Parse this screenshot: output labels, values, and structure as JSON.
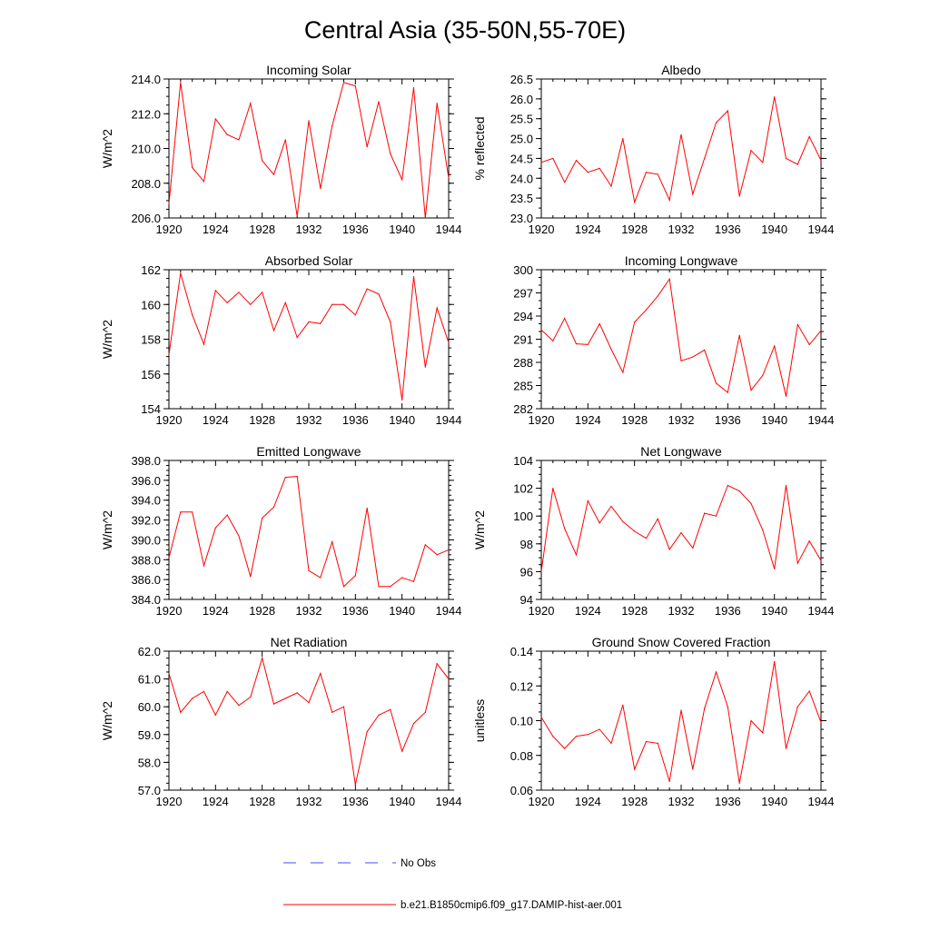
{
  "figure": {
    "title": "Central Asia (35-50N,55-70E)",
    "line_color": "#ff0000",
    "obs_color": "#4a4aff",
    "legend": {
      "obs_label": "No Obs",
      "model_label": "b.e21.B1850cmip6.f09_g17.DAMIP-hist-aer.001"
    }
  },
  "chart_data": [
    {
      "type": "line",
      "title": "Incoming Solar",
      "xlabel": "",
      "ylabel": "W/m^2",
      "xlim": [
        1920,
        1944
      ],
      "ylim": [
        206,
        214
      ],
      "xticks": [
        1920,
        1924,
        1928,
        1932,
        1936,
        1940,
        1944
      ],
      "yticks": [
        206,
        208,
        210,
        212,
        214
      ],
      "tick_decimals": 1,
      "minor_step": 0.5,
      "series": [
        {
          "x_start": 1920,
          "x_step": 1,
          "values": [
            206.8,
            213.8,
            208.9,
            208.1,
            211.7,
            210.8,
            210.5,
            212.6,
            209.3,
            208.5,
            210.5,
            206.1,
            211.6,
            207.7,
            211.3,
            213.8,
            213.6,
            210.1,
            212.7,
            209.7,
            208.2,
            213.5,
            206.0,
            212.6,
            208.3
          ]
        }
      ]
    },
    {
      "type": "line",
      "title": "Albedo",
      "xlabel": "",
      "ylabel": "% reflected",
      "xlim": [
        1920,
        1944
      ],
      "ylim": [
        23,
        26.5
      ],
      "xticks": [
        1920,
        1924,
        1928,
        1932,
        1936,
        1940,
        1944
      ],
      "yticks": [
        23,
        23.5,
        24,
        24.5,
        25,
        25.5,
        26,
        26.5
      ],
      "tick_decimals": 1,
      "minor_step": 0.25,
      "series": [
        {
          "x_start": 1920,
          "x_step": 1,
          "values": [
            24.4,
            24.5,
            23.9,
            24.45,
            24.15,
            24.25,
            23.8,
            25.0,
            23.4,
            24.15,
            24.1,
            23.45,
            25.1,
            23.6,
            24.5,
            25.4,
            25.7,
            23.55,
            24.7,
            24.4,
            26.05,
            24.5,
            24.35,
            25.05,
            24.45
          ]
        }
      ]
    },
    {
      "type": "line",
      "title": "Absorbed Solar",
      "xlabel": "",
      "ylabel": "W/m^2",
      "xlim": [
        1920,
        1944
      ],
      "ylim": [
        154,
        162
      ],
      "xticks": [
        1920,
        1924,
        1928,
        1932,
        1936,
        1940,
        1944
      ],
      "yticks": [
        154,
        156,
        158,
        160,
        162
      ],
      "tick_decimals": 0,
      "minor_step": 0.5,
      "series": [
        {
          "x_start": 1920,
          "x_step": 1,
          "values": [
            157.1,
            161.8,
            159.4,
            157.7,
            160.8,
            160.1,
            160.7,
            160.0,
            160.7,
            158.5,
            160.1,
            158.1,
            159.0,
            158.9,
            160.0,
            160.0,
            159.4,
            160.9,
            160.6,
            159.0,
            154.5,
            161.6,
            156.4,
            159.8,
            157.8
          ]
        }
      ]
    },
    {
      "type": "line",
      "title": "Incoming Longwave",
      "xlabel": "",
      "ylabel": "",
      "xlim": [
        1920,
        1944
      ],
      "ylim": [
        282,
        300
      ],
      "xticks": [
        1920,
        1924,
        1928,
        1932,
        1936,
        1940,
        1944
      ],
      "yticks": [
        282,
        285,
        288,
        291,
        294,
        297,
        300
      ],
      "tick_decimals": 0,
      "minor_step": 1,
      "series": [
        {
          "x_start": 1920,
          "x_step": 1,
          "values": [
            292.2,
            290.8,
            293.7,
            290.4,
            290.3,
            293.0,
            289.7,
            286.7,
            293.2,
            294.8,
            296.6,
            298.8,
            288.2,
            288.7,
            289.6,
            285.3,
            284.1,
            291.5,
            284.4,
            286.3,
            290.1,
            283.6,
            292.9,
            290.3,
            292.1
          ]
        }
      ]
    },
    {
      "type": "line",
      "title": "Emitted Longwave",
      "xlabel": "",
      "ylabel": "W/m^2",
      "xlim": [
        1920,
        1944
      ],
      "ylim": [
        384,
        398
      ],
      "xticks": [
        1920,
        1924,
        1928,
        1932,
        1936,
        1940,
        1944
      ],
      "yticks": [
        384,
        386,
        388,
        390,
        392,
        394,
        396,
        398
      ],
      "tick_decimals": 1,
      "minor_step": 0.5,
      "series": [
        {
          "x_start": 1920,
          "x_step": 1,
          "values": [
            388.2,
            392.8,
            392.8,
            387.4,
            391.2,
            392.5,
            390.4,
            386.3,
            392.2,
            393.3,
            396.3,
            396.4,
            386.9,
            386.2,
            389.8,
            385.3,
            386.4,
            393.2,
            385.3,
            385.3,
            386.2,
            385.8,
            389.5,
            388.5,
            389.0
          ]
        }
      ]
    },
    {
      "type": "line",
      "title": "Net Longwave",
      "xlabel": "",
      "ylabel": "W/m^2",
      "xlim": [
        1920,
        1944
      ],
      "ylim": [
        94,
        104
      ],
      "xticks": [
        1920,
        1924,
        1928,
        1932,
        1936,
        1940,
        1944
      ],
      "yticks": [
        94,
        96,
        98,
        100,
        102,
        104
      ],
      "tick_decimals": 0,
      "minor_step": 0.5,
      "series": [
        {
          "x_start": 1920,
          "x_step": 1,
          "values": [
            96.0,
            102.0,
            99.1,
            97.2,
            101.1,
            99.5,
            100.7,
            99.6,
            98.9,
            98.4,
            99.8,
            97.6,
            98.8,
            97.7,
            100.2,
            100.0,
            102.2,
            101.8,
            100.9,
            99.0,
            96.2,
            102.2,
            96.6,
            98.2,
            96.8
          ]
        }
      ]
    },
    {
      "type": "line",
      "title": "Net Radiation",
      "xlabel": "",
      "ylabel": "W/m^2",
      "xlim": [
        1920,
        1944
      ],
      "ylim": [
        57,
        62
      ],
      "xticks": [
        1920,
        1924,
        1928,
        1932,
        1936,
        1940,
        1944
      ],
      "yticks": [
        57,
        58,
        59,
        60,
        61,
        62
      ],
      "tick_decimals": 1,
      "minor_step": 0.25,
      "series": [
        {
          "x_start": 1920,
          "x_step": 1,
          "values": [
            61.2,
            59.8,
            60.3,
            60.55,
            59.7,
            60.55,
            60.05,
            60.35,
            61.75,
            60.1,
            60.3,
            60.5,
            60.15,
            61.2,
            59.8,
            60.0,
            57.2,
            59.1,
            59.7,
            59.9,
            58.4,
            59.4,
            59.8,
            61.55,
            61.0
          ]
        }
      ]
    },
    {
      "type": "line",
      "title": "Ground Snow Covered Fraction",
      "xlabel": "",
      "ylabel": "unitless",
      "xlim": [
        1920,
        1944
      ],
      "ylim": [
        0.06,
        0.14
      ],
      "xticks": [
        1920,
        1924,
        1928,
        1932,
        1936,
        1940,
        1944
      ],
      "yticks": [
        0.06,
        0.08,
        0.1,
        0.12,
        0.14
      ],
      "tick_decimals": 2,
      "minor_step": 0.005,
      "series": [
        {
          "x_start": 1920,
          "x_step": 1,
          "values": [
            0.102,
            0.091,
            0.084,
            0.091,
            0.092,
            0.095,
            0.087,
            0.109,
            0.072,
            0.088,
            0.087,
            0.065,
            0.106,
            0.072,
            0.107,
            0.128,
            0.108,
            0.064,
            0.1,
            0.093,
            0.134,
            0.084,
            0.108,
            0.117,
            0.099
          ]
        }
      ]
    }
  ]
}
